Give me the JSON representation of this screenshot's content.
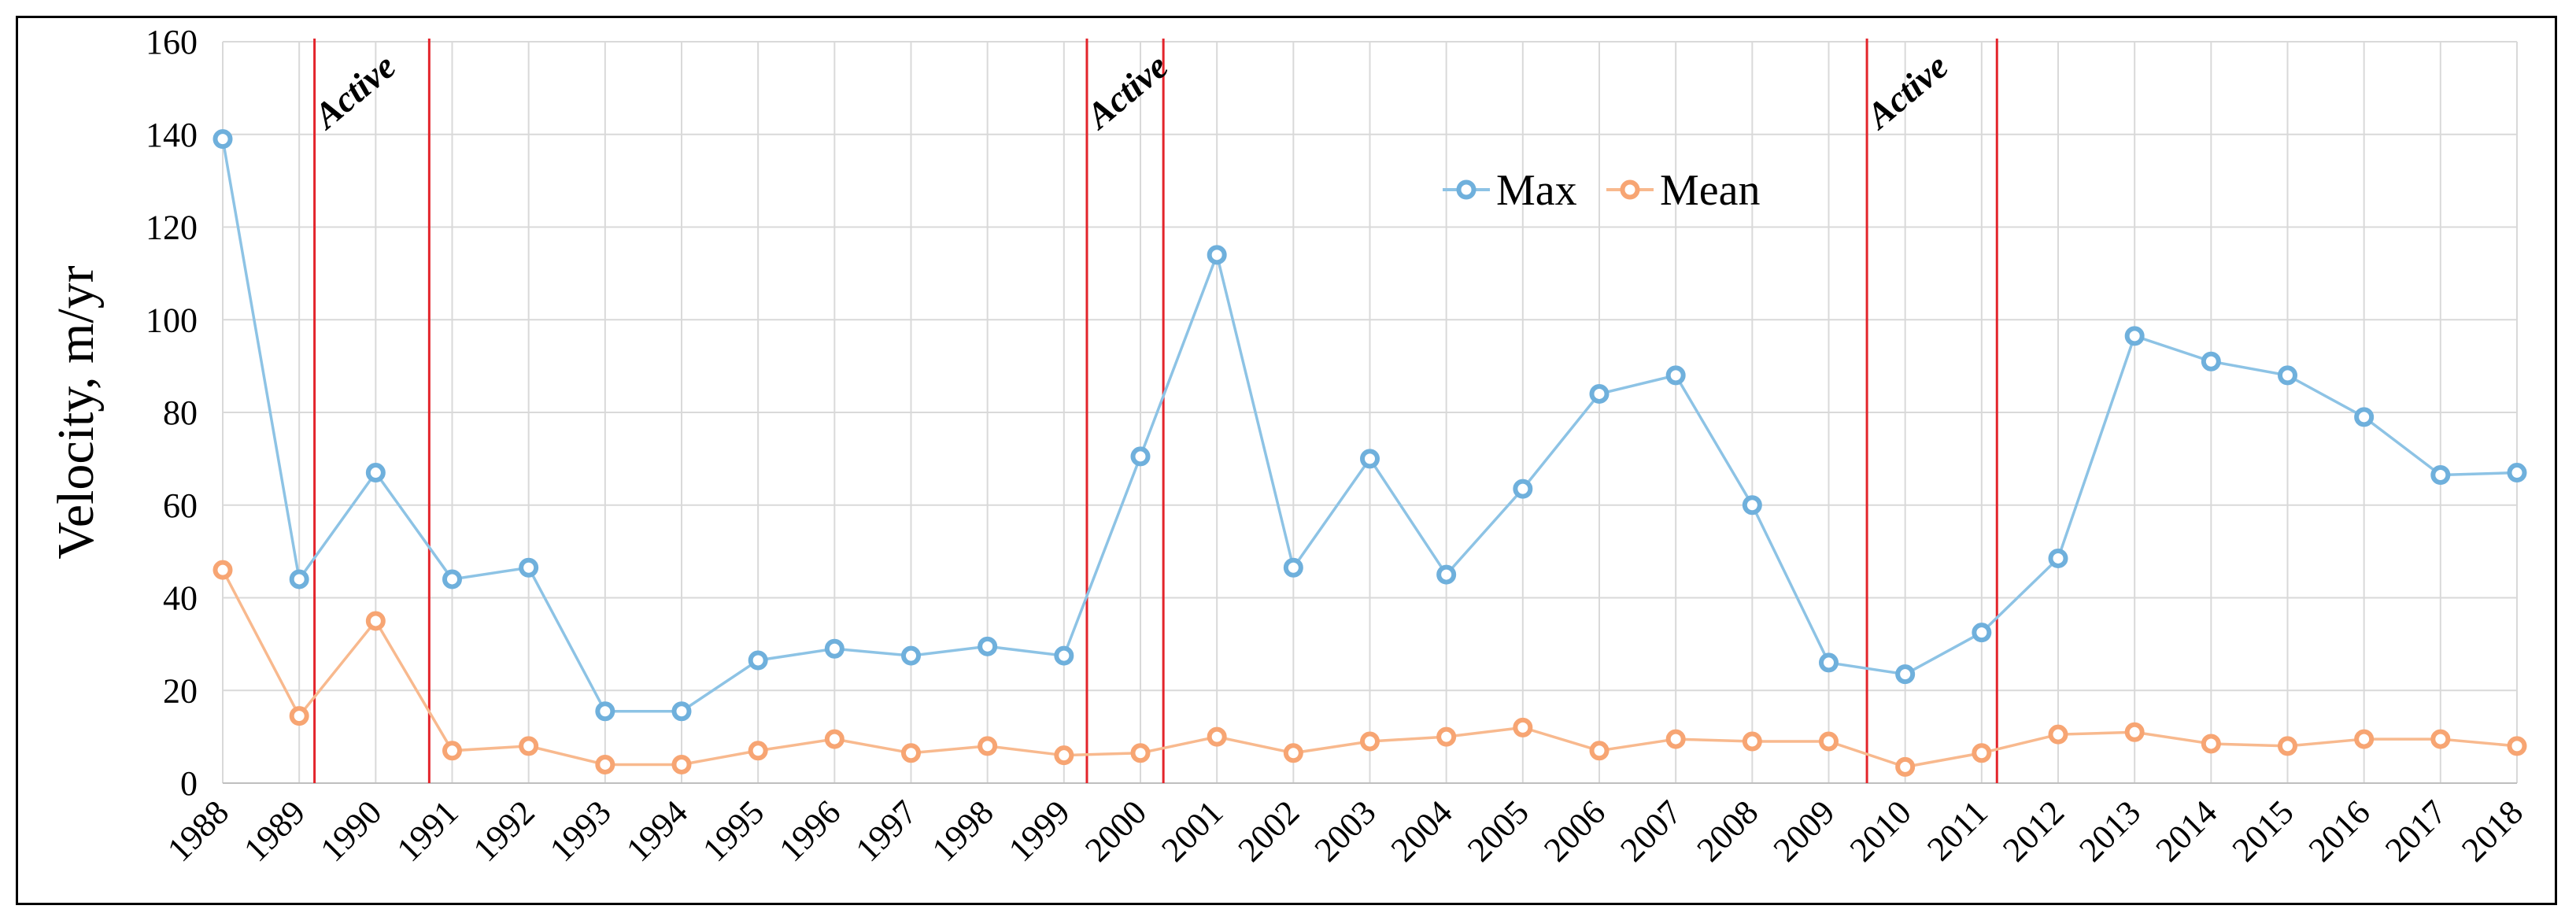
{
  "chart_data": {
    "type": "line",
    "title": "",
    "xlabel": "",
    "ylabel": "Velocity, m/yr",
    "categories": [
      "1988",
      "1989",
      "1990",
      "1991",
      "1992",
      "1993",
      "1994",
      "1995",
      "1996",
      "1997",
      "1998",
      "1999",
      "2000",
      "2001",
      "2002",
      "2003",
      "2004",
      "2005",
      "2006",
      "2007",
      "2008",
      "2009",
      "2010",
      "2011",
      "2012",
      "2013",
      "2014",
      "2015",
      "2016",
      "2017",
      "2018"
    ],
    "series": [
      {
        "name": "Max",
        "color": "#8DC3E5",
        "marker_color": "#6FB0DC",
        "values": [
          139,
          44,
          67,
          44,
          46.5,
          15.5,
          15.5,
          26.5,
          29,
          27.5,
          29.5,
          27.5,
          70.5,
          114,
          46.5,
          70,
          45,
          63.5,
          84,
          88,
          60,
          26,
          23.5,
          32.5,
          48.5,
          96.5,
          91,
          88,
          79,
          66.5,
          67
        ]
      },
      {
        "name": "Mean",
        "color": "#F8B98E",
        "marker_color": "#F7A573",
        "values": [
          46,
          14.5,
          35,
          7,
          8,
          4,
          4,
          7,
          9.5,
          6.5,
          8,
          6,
          6.5,
          10,
          6.5,
          9,
          10,
          12,
          7,
          9.5,
          9,
          9,
          3.5,
          6.5,
          10.5,
          11,
          8.5,
          8,
          9.5,
          9.5,
          8
        ]
      }
    ],
    "ylim": [
      0,
      160
    ],
    "yticks": [
      0,
      20,
      40,
      60,
      80,
      100,
      120,
      140,
      160
    ],
    "grid": true,
    "legend_position": "top-center",
    "active_periods": [
      {
        "label": "Active",
        "start_year": 1989.2,
        "end_year": 1990.7
      },
      {
        "label": "Active",
        "start_year": 1999.3,
        "end_year": 2000.3
      },
      {
        "label": "Active",
        "start_year": 2009.5,
        "end_year": 2011.2
      }
    ],
    "active_line_color": "#E3242B"
  }
}
